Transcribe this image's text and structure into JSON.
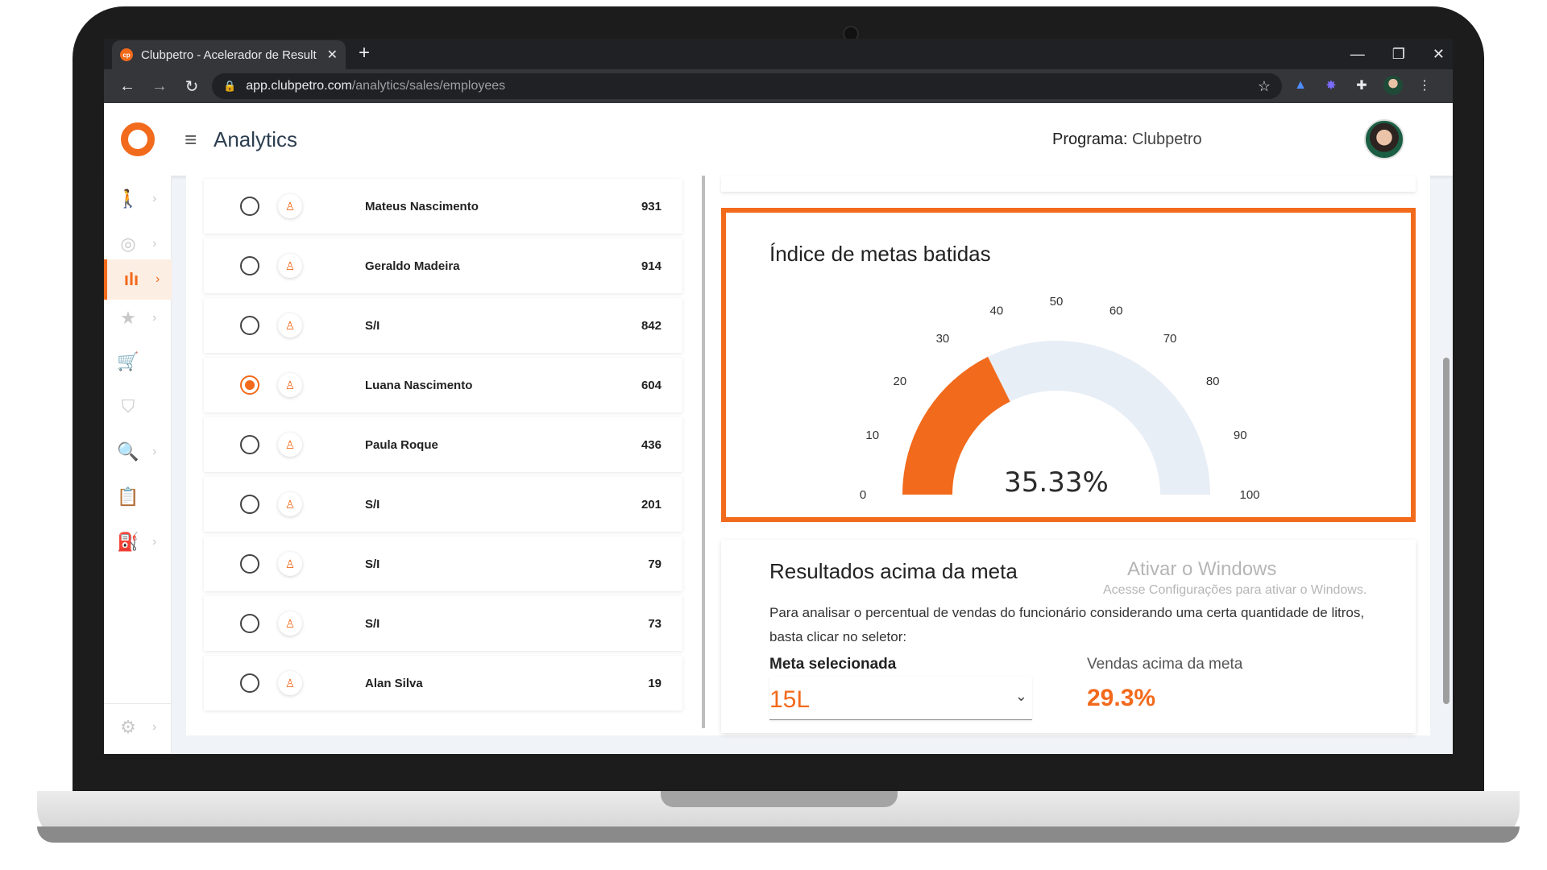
{
  "browser": {
    "tab_title": "Clubpetro - Acelerador de Result",
    "tab_favicon_text": "cp",
    "url_domain": "app.clubpetro.com",
    "url_path": "/analytics/sales/employees"
  },
  "header": {
    "title": "Analytics",
    "program_label": "Programa:",
    "program_value": "Clubpetro"
  },
  "sidebar": {
    "items": [
      {
        "icon": "person-walking-icon",
        "has_chevron": true,
        "active": false
      },
      {
        "icon": "target-icon",
        "has_chevron": true,
        "active": false
      },
      {
        "icon": "bar-chart-icon",
        "has_chevron": true,
        "active": true
      },
      {
        "icon": "star-icon",
        "has_chevron": true,
        "active": false
      },
      {
        "icon": "cart-add-icon",
        "has_chevron": false,
        "active": false
      },
      {
        "icon": "shield-check-icon",
        "has_chevron": false,
        "active": false
      },
      {
        "icon": "document-search-icon",
        "has_chevron": true,
        "active": false
      },
      {
        "icon": "clipboard-icon",
        "has_chevron": false,
        "active": false
      },
      {
        "icon": "fuel-pump-icon",
        "has_chevron": true,
        "active": false
      }
    ],
    "settings_icon": "gear-icon"
  },
  "employees": [
    {
      "name": "Mateus Nascimento",
      "value": "931",
      "selected": false
    },
    {
      "name": "Geraldo Madeira",
      "value": "914",
      "selected": false
    },
    {
      "name": "S/I",
      "value": "842",
      "selected": false
    },
    {
      "name": "Luana Nascimento",
      "value": "604",
      "selected": true
    },
    {
      "name": "Paula Roque",
      "value": "436",
      "selected": false
    },
    {
      "name": "S/I",
      "value": "201",
      "selected": false
    },
    {
      "name": "S/I",
      "value": "79",
      "selected": false
    },
    {
      "name": "S/I",
      "value": "73",
      "selected": false
    },
    {
      "name": "Alan Silva",
      "value": "19",
      "selected": false
    }
  ],
  "gauge": {
    "title": "Índice de metas batidas",
    "value": 35.33,
    "value_label": "35.33%",
    "min": 0,
    "max": 100,
    "ticks": [
      "0",
      "10",
      "20",
      "30",
      "40",
      "50",
      "60",
      "70",
      "80",
      "90",
      "100"
    ],
    "fill_color": "#f26a1b",
    "track_color": "#e8eef6"
  },
  "results": {
    "title": "Resultados acima da meta",
    "description": "Para analisar o percentual de vendas do funcionário considerando uma certa quantidade de litros, basta clicar no seletor:",
    "meta_label": "Meta selecionada",
    "meta_value": "15L",
    "vendas_label": "Vendas acima da meta",
    "vendas_value": "29.3%"
  },
  "windows_watermark": {
    "title": "Ativar o Windows",
    "subtitle": "Acesse Configurações para ativar o Windows."
  },
  "colors": {
    "accent": "#f26a1b"
  }
}
